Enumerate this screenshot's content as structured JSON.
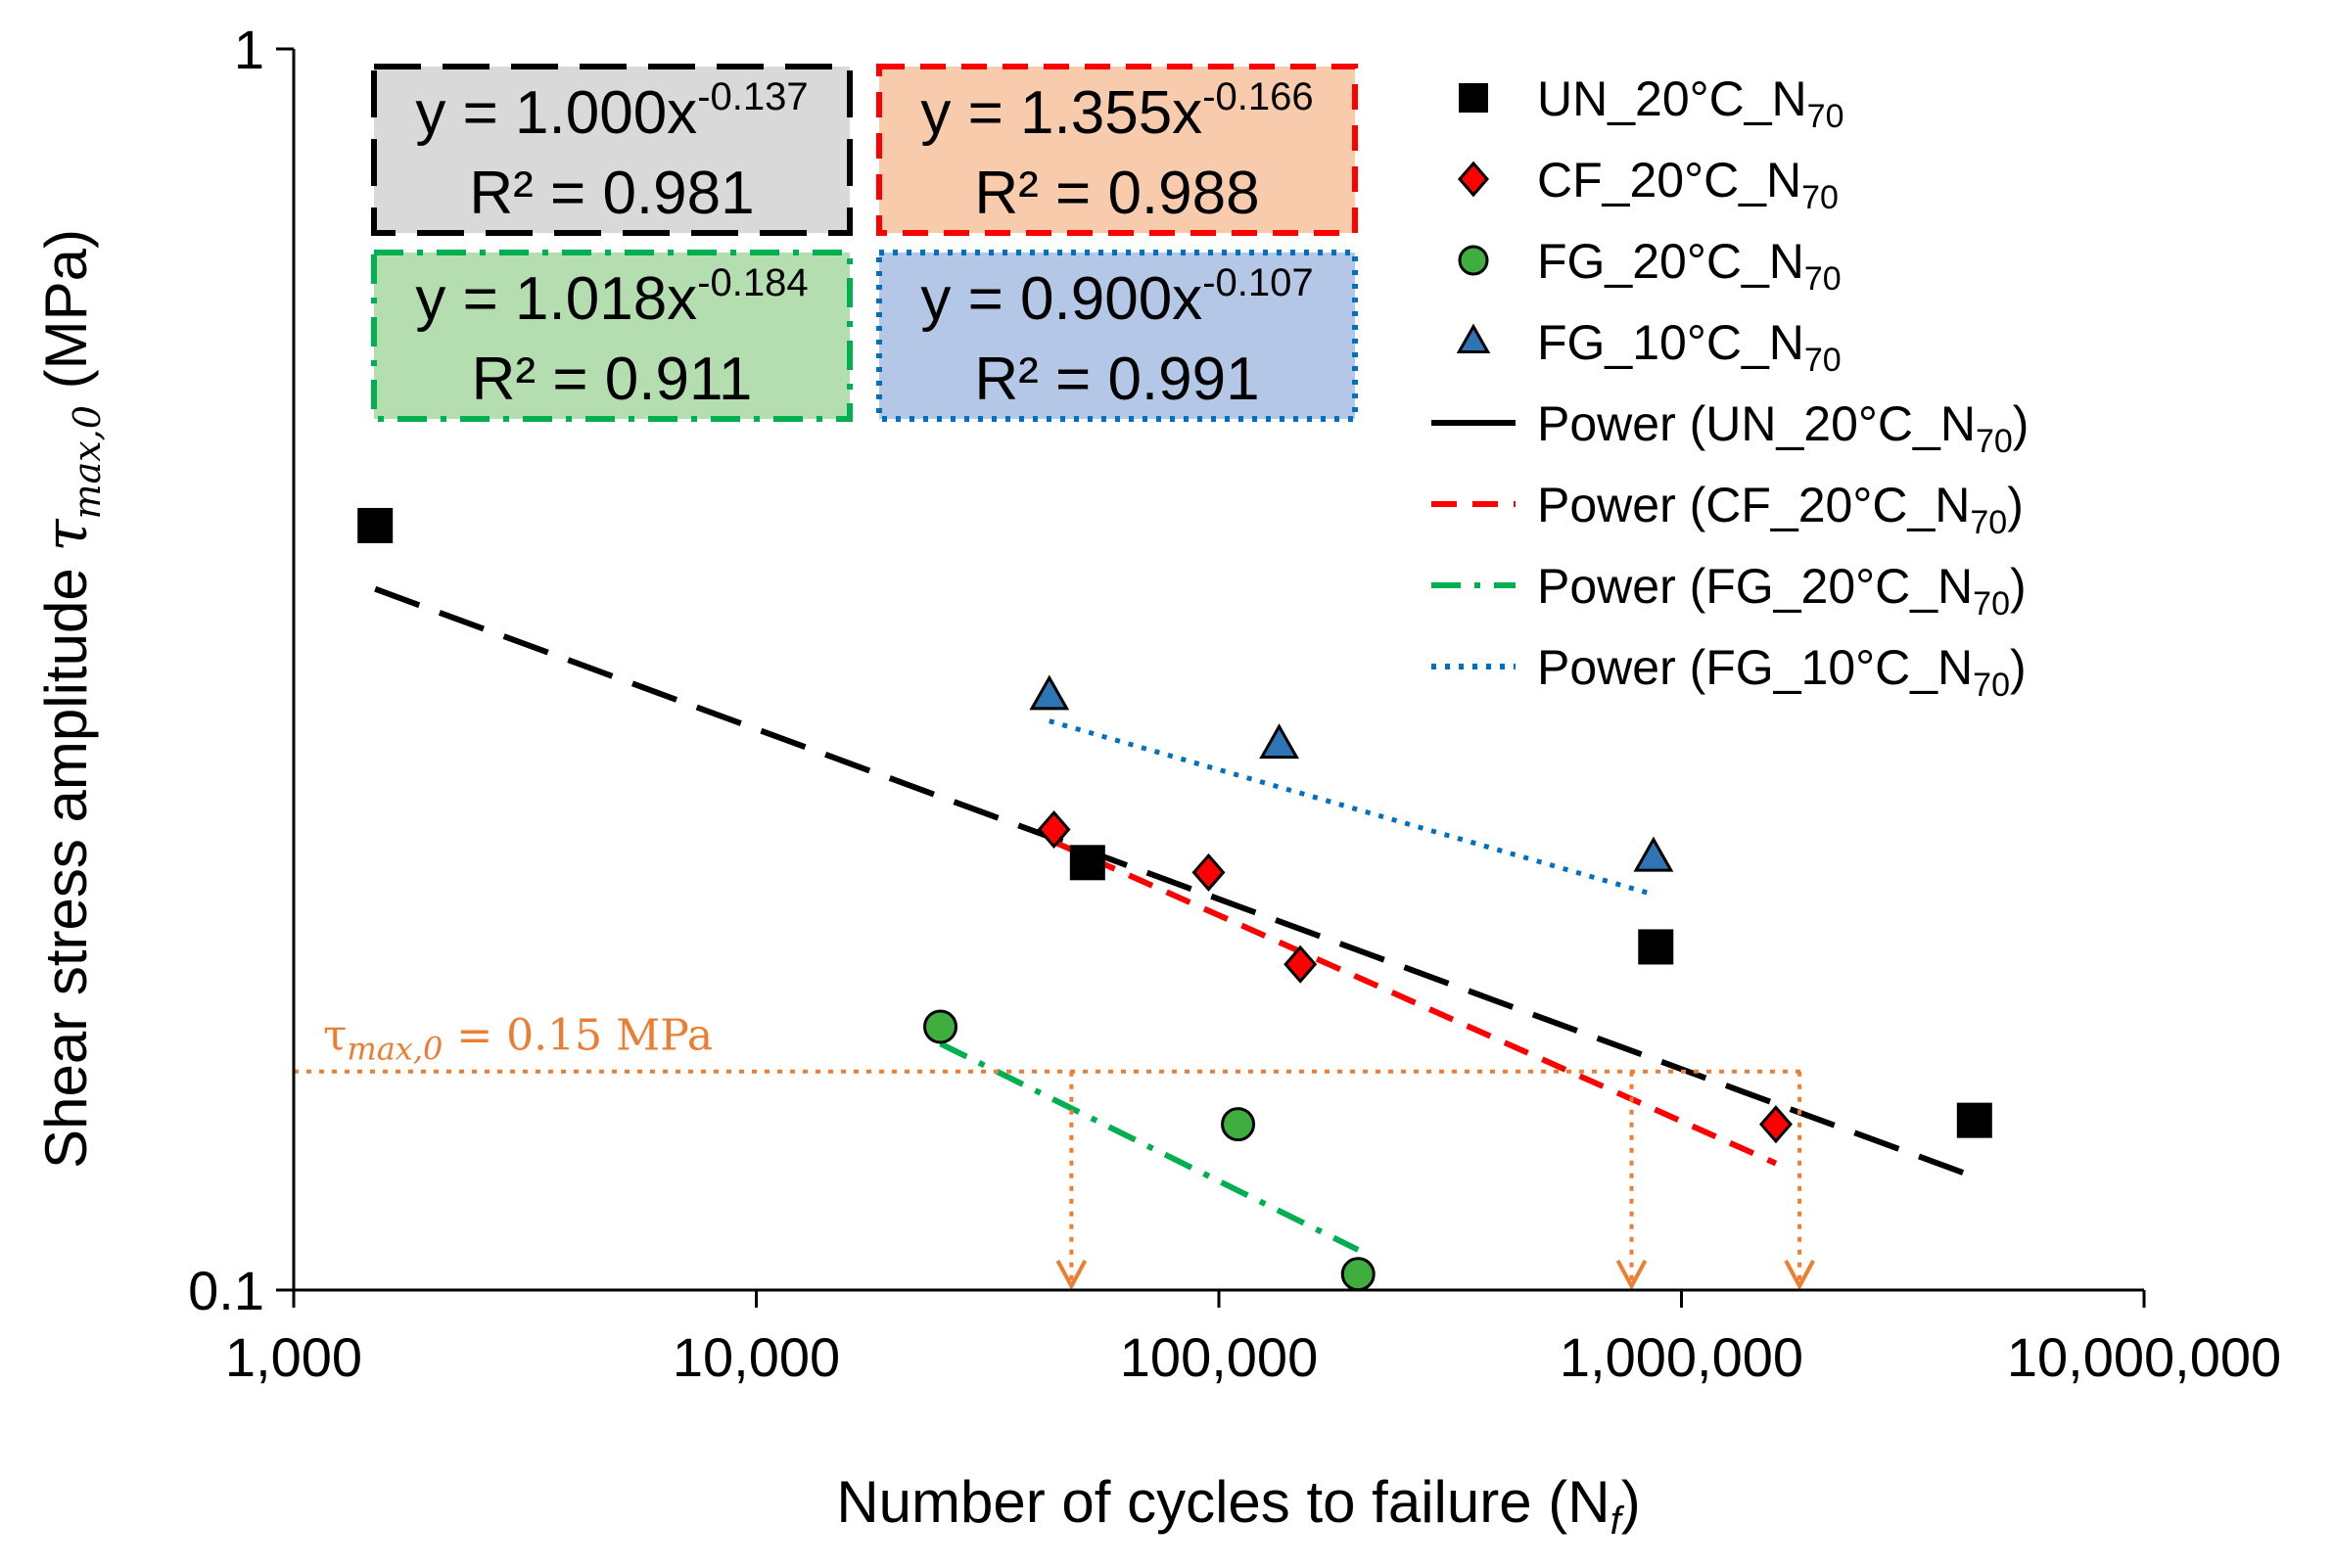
{
  "chart_data": {
    "type": "scatter",
    "title": "",
    "xlabel": "Number of cycles to failure (N",
    "xlabel_sub": "f",
    "xlabel_close": ")",
    "ylabel": "Shear stress amplitude ",
    "ylabel_symbol": "τ",
    "ylabel_sub": "max,0",
    "ylabel_unit": " (MPa)",
    "xscale": "log",
    "yscale": "log",
    "xlim": [
      1000,
      10000000
    ],
    "ylim": [
      0.1,
      1
    ],
    "x_ticks": [
      1000,
      10000,
      100000,
      1000000,
      10000000
    ],
    "x_tick_labels": [
      "1,000",
      "10,000",
      "100,000",
      "1,000,000",
      "10,000,000"
    ],
    "y_ticks": [
      0.1,
      1
    ],
    "y_tick_labels": [
      "0.1",
      "1"
    ],
    "grid": false,
    "legend_position": "top-right",
    "series": [
      {
        "name": "UN_20°C_N",
        "name_sub": "70",
        "marker": "square",
        "color": "#000000",
        "x": [
          1500,
          52000,
          880000,
          4300000
        ],
        "y": [
          0.413,
          0.221,
          0.189,
          0.137
        ]
      },
      {
        "name": "CF_20°C_N",
        "name_sub": "70",
        "marker": "diamond",
        "color": "#FF0000",
        "x": [
          44000,
          95000,
          150000,
          1600000
        ],
        "y": [
          0.235,
          0.217,
          0.183,
          0.136
        ]
      },
      {
        "name": "FG_20°C_N",
        "name_sub": "70",
        "marker": "circle",
        "color": "#3FAE3F",
        "x": [
          25000,
          110000,
          200000
        ],
        "y": [
          0.163,
          0.136,
          0.103
        ]
      },
      {
        "name": "FG_10°C_N",
        "name_sub": "70",
        "marker": "triangle",
        "color": "#2E75B6",
        "x": [
          43000,
          135000,
          870000
        ],
        "y": [
          0.301,
          0.275,
          0.223
        ]
      }
    ],
    "trendlines": [
      {
        "name": "Power (UN_20°C_N",
        "name_sub": "70",
        "name_close": ")",
        "a": 1.0,
        "b": -0.137,
        "r2": 0.981,
        "x_range": [
          1500,
          4300000
        ],
        "color": "#000000",
        "style": "longdash",
        "eq_main": "y = 1.000x",
        "eq_exp": "-0.137",
        "r2_text": "R² = 0.981",
        "box_fill": "#D9D9D9"
      },
      {
        "name": "Power (CF_20°C_N",
        "name_sub": "70",
        "name_close": ")",
        "a": 1.355,
        "b": -0.166,
        "r2": 0.988,
        "x_range": [
          44000,
          1600000
        ],
        "color": "#FF0000",
        "style": "dash",
        "eq_main": "y = 1.355x",
        "eq_exp": "-0.166",
        "r2_text": "R² = 0.988",
        "box_fill": "#F8CBAD"
      },
      {
        "name": "Power (FG_20°C_N",
        "name_sub": "70",
        "name_close": ")",
        "a": 1.018,
        "b": -0.184,
        "r2": 0.911,
        "x_range": [
          25000,
          200000
        ],
        "color": "#00B050",
        "style": "dashdot",
        "eq_main": "y = 1.018x",
        "eq_exp": "-0.184",
        "r2_text": "R² = 0.911",
        "box_fill": "#B4DEB0"
      },
      {
        "name": "Power (FG_10°C_N",
        "name_sub": "70",
        "name_close": ")",
        "a": 0.9,
        "b": -0.107,
        "r2": 0.991,
        "x_range": [
          43000,
          870000
        ],
        "color": "#0070C0",
        "style": "dot",
        "eq_main": "y = 0.900x",
        "eq_exp": "-0.107",
        "r2_text": "R² = 0.991",
        "box_fill": "#B4C7E7"
      }
    ],
    "threshold": {
      "y": 0.15,
      "symbol": "τ",
      "sub": "max,0",
      "text": " = 0.15 MPa",
      "color": "#ED7D31",
      "arrow_x": [
        48000,
        780000,
        1800000
      ]
    }
  }
}
